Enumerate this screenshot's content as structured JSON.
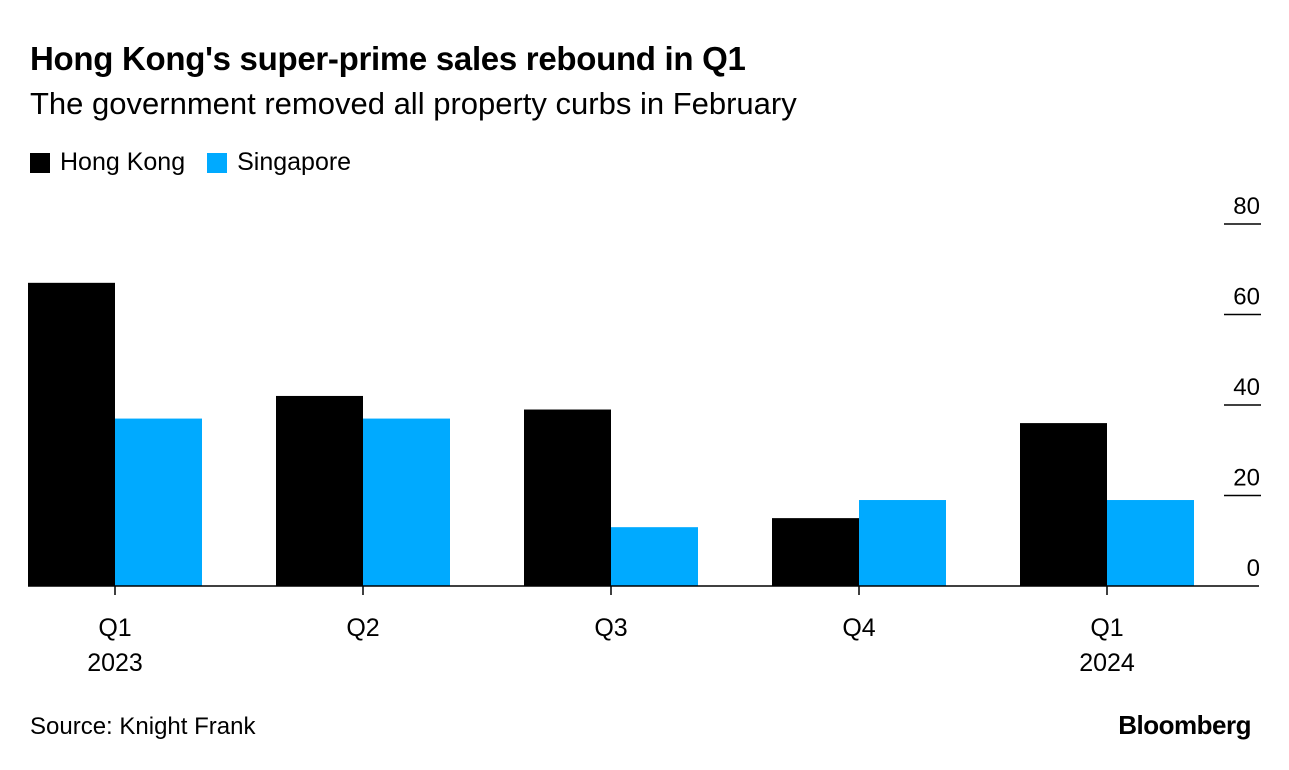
{
  "title": "Hong Kong's super-prime sales rebound in Q1",
  "subtitle": "The government removed all property curbs in February",
  "source": "Source: Knight Frank",
  "brand": "Bloomberg",
  "chart_data": {
    "type": "bar",
    "categories": [
      {
        "quarter": "Q1",
        "year": "2023"
      },
      {
        "quarter": "Q2",
        "year": ""
      },
      {
        "quarter": "Q3",
        "year": ""
      },
      {
        "quarter": "Q4",
        "year": ""
      },
      {
        "quarter": "Q1",
        "year": "2024"
      }
    ],
    "series": [
      {
        "name": "Hong Kong",
        "color": "#000000",
        "values": [
          67,
          42,
          39,
          15,
          36
        ]
      },
      {
        "name": "Singapore",
        "color": "#00aaff",
        "values": [
          37,
          37,
          13,
          19,
          19
        ]
      }
    ],
    "ylim": [
      0,
      80
    ],
    "yticks": [
      "0",
      "20",
      "40",
      "60",
      "80"
    ],
    "legend_position": "top-left",
    "axis_position": "right"
  }
}
